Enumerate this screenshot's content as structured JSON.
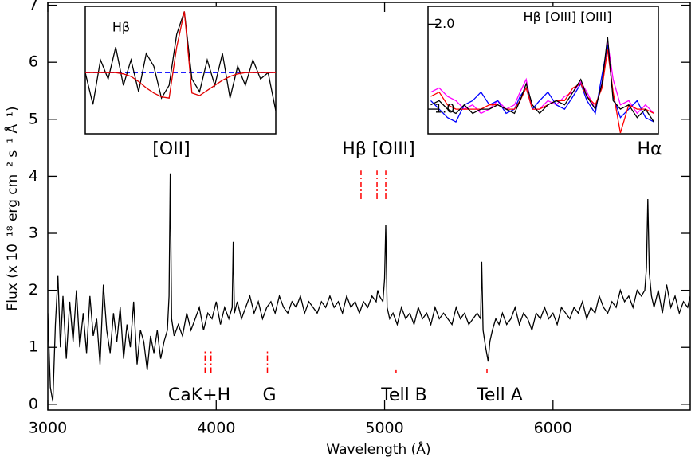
{
  "chart_data": [
    {
      "type": "line",
      "xlabel": "Wavelength (Å)",
      "ylabel": "Flux (x 10⁻¹⁸ erg cm⁻² s⁻¹ Å⁻¹)",
      "xlim": [
        3000,
        6815
      ],
      "ylim": [
        -0.1,
        7.05
      ],
      "xticks": [
        3000,
        4000,
        5000,
        6000
      ],
      "yticks": [
        0,
        1,
        2,
        3,
        4,
        5,
        6,
        7
      ],
      "color": "#000000",
      "x": [
        3000,
        3015,
        3030,
        3045,
        3060,
        3075,
        3090,
        3110,
        3130,
        3150,
        3170,
        3190,
        3210,
        3230,
        3250,
        3270,
        3290,
        3310,
        3330,
        3350,
        3370,
        3390,
        3410,
        3430,
        3450,
        3470,
        3490,
        3510,
        3530,
        3550,
        3570,
        3590,
        3610,
        3630,
        3650,
        3670,
        3690,
        3710,
        3720,
        3727,
        3735,
        3750,
        3775,
        3800,
        3825,
        3850,
        3875,
        3900,
        3925,
        3950,
        3975,
        4000,
        4025,
        4050,
        4075,
        4095,
        4101,
        4108,
        4125,
        4150,
        4175,
        4200,
        4225,
        4250,
        4275,
        4300,
        4325,
        4350,
        4375,
        4400,
        4425,
        4450,
        4475,
        4500,
        4525,
        4550,
        4575,
        4600,
        4625,
        4650,
        4675,
        4700,
        4725,
        4750,
        4775,
        4800,
        4825,
        4850,
        4875,
        4900,
        4925,
        4950,
        4959,
        4970,
        4990,
        5000,
        5007,
        5015,
        5030,
        5050,
        5075,
        5100,
        5125,
        5150,
        5175,
        5200,
        5225,
        5250,
        5275,
        5300,
        5325,
        5350,
        5375,
        5400,
        5425,
        5450,
        5475,
        5500,
        5525,
        5550,
        5570,
        5577,
        5585,
        5600,
        5615,
        5625,
        5640,
        5660,
        5680,
        5700,
        5725,
        5750,
        5775,
        5800,
        5825,
        5850,
        5875,
        5900,
        5925,
        5950,
        5975,
        6000,
        6025,
        6050,
        6075,
        6100,
        6125,
        6150,
        6175,
        6200,
        6225,
        6250,
        6275,
        6300,
        6325,
        6350,
        6375,
        6400,
        6425,
        6450,
        6475,
        6500,
        6525,
        6545,
        6555,
        6563,
        6572,
        6585,
        6600,
        6625,
        6650,
        6675,
        6700,
        6725,
        6750,
        6775,
        6800,
        6815
      ],
      "values": [
        1.6,
        0.3,
        0.05,
        1.4,
        2.25,
        1.0,
        1.9,
        0.8,
        1.8,
        1.1,
        2.0,
        1.0,
        1.6,
        0.9,
        1.9,
        1.2,
        1.5,
        0.7,
        2.1,
        1.3,
        0.9,
        1.6,
        1.1,
        1.7,
        0.8,
        1.4,
        1.0,
        1.8,
        0.7,
        1.3,
        1.1,
        0.6,
        1.2,
        0.9,
        1.3,
        0.8,
        1.1,
        1.3,
        1.9,
        4.05,
        1.5,
        1.2,
        1.4,
        1.2,
        1.6,
        1.3,
        1.5,
        1.7,
        1.3,
        1.6,
        1.5,
        1.8,
        1.4,
        1.7,
        1.5,
        1.7,
        2.85,
        1.6,
        1.8,
        1.5,
        1.7,
        1.9,
        1.6,
        1.8,
        1.5,
        1.7,
        1.8,
        1.6,
        1.9,
        1.7,
        1.6,
        1.8,
        1.7,
        1.9,
        1.6,
        1.8,
        1.7,
        1.6,
        1.8,
        1.7,
        1.9,
        1.7,
        1.8,
        1.6,
        1.9,
        1.7,
        1.8,
        1.6,
        1.8,
        1.7,
        1.9,
        1.8,
        2.0,
        1.9,
        1.8,
        2.2,
        3.15,
        1.7,
        1.5,
        1.6,
        1.4,
        1.7,
        1.5,
        1.6,
        1.4,
        1.7,
        1.5,
        1.6,
        1.4,
        1.7,
        1.5,
        1.6,
        1.5,
        1.4,
        1.7,
        1.5,
        1.6,
        1.4,
        1.5,
        1.6,
        1.5,
        2.5,
        1.3,
        1.0,
        0.75,
        1.1,
        1.3,
        1.5,
        1.4,
        1.6,
        1.4,
        1.5,
        1.7,
        1.4,
        1.6,
        1.5,
        1.3,
        1.6,
        1.5,
        1.7,
        1.5,
        1.6,
        1.4,
        1.7,
        1.6,
        1.5,
        1.7,
        1.6,
        1.8,
        1.5,
        1.7,
        1.6,
        1.9,
        1.7,
        1.6,
        1.8,
        1.7,
        2.0,
        1.8,
        1.9,
        1.7,
        2.0,
        1.9,
        2.0,
        2.4,
        3.6,
        2.3,
        1.9,
        1.7,
        2.0,
        1.6,
        2.1,
        1.7,
        1.9,
        1.6,
        1.8,
        1.7,
        1.9
      ],
      "annotations": [
        "[OII]",
        "Hβ [OIII]",
        "Hα",
        "CaK+H",
        "G",
        "Tell B",
        "Tell A"
      ],
      "marker_color": "#ff0000",
      "markers": [
        {
          "x": 4860,
          "y": [
            3.6,
            4.1
          ]
        },
        {
          "x": 4955,
          "y": [
            3.6,
            4.1
          ]
        },
        {
          "x": 5007,
          "y": [
            3.6,
            4.1
          ]
        },
        {
          "x": 3934,
          "y": [
            0.55,
            0.95
          ]
        },
        {
          "x": 3969,
          "y": [
            0.55,
            0.95
          ]
        },
        {
          "x": 4304,
          "y": [
            0.55,
            0.95
          ]
        },
        {
          "x": 5068,
          "y": [
            0.55,
            0.6
          ]
        },
        {
          "x": 5608,
          "y": [
            0.55,
            0.62
          ]
        }
      ]
    },
    {
      "type": "line",
      "xlim": [
        4760,
        4960
      ],
      "ylim": [
        0.52,
        1.52
      ],
      "x": [
        4760,
        4768,
        4776,
        4784,
        4792,
        4800,
        4808,
        4816,
        4824,
        4832,
        4840,
        4848,
        4856,
        4864,
        4872,
        4880,
        4888,
        4896,
        4904,
        4912,
        4920,
        4928,
        4936,
        4944,
        4952,
        4960
      ],
      "series": [
        {
          "color": "#000000",
          "values": [
            1.0,
            0.75,
            1.1,
            0.95,
            1.2,
            0.9,
            1.1,
            0.85,
            1.15,
            1.05,
            0.8,
            0.9,
            1.3,
            1.48,
            0.95,
            0.85,
            1.1,
            0.9,
            1.15,
            0.8,
            1.05,
            0.9,
            1.1,
            0.95,
            1.0,
            0.7
          ]
        },
        {
          "color": "#e00000",
          "values": [
            1.0,
            1.0,
            1.0,
            1.0,
            1.0,
            0.99,
            0.97,
            0.93,
            0.88,
            0.84,
            0.81,
            0.8,
            1.2,
            1.48,
            0.84,
            0.82,
            0.86,
            0.9,
            0.94,
            0.97,
            0.99,
            1.0,
            1.0,
            1.0,
            1.0,
            1.0
          ]
        }
      ],
      "continuum": 1.0,
      "continuum_color": "#0000ff",
      "annotations": [
        "Hβ"
      ]
    },
    {
      "type": "line",
      "xlim": [
        4685,
        5098
      ],
      "ylim": [
        0.71,
        2.21
      ],
      "yticks": [
        {
          "value": 1.0,
          "label": "1.0"
        },
        {
          "value": 2.0,
          "label": "2.0"
        }
      ],
      "x": [
        4690,
        4705,
        4720,
        4735,
        4750,
        4765,
        4780,
        4795,
        4810,
        4825,
        4840,
        4850,
        4861,
        4872,
        4885,
        4900,
        4915,
        4930,
        4945,
        4959,
        4970,
        4985,
        4997,
        5007,
        5017,
        5030,
        5045,
        5060,
        5075,
        5090
      ],
      "series": [
        {
          "color": "#ff00ff",
          "values": [
            1.2,
            1.25,
            1.15,
            1.1,
            1.0,
            1.05,
            0.95,
            1.0,
            1.1,
            1.0,
            1.05,
            1.2,
            1.35,
            1.0,
            1.0,
            1.1,
            1.05,
            1.15,
            1.2,
            1.32,
            1.2,
            1.0,
            1.3,
            1.8,
            1.35,
            1.05,
            1.1,
            0.95,
            1.05,
            0.95
          ]
        },
        {
          "color": "#0000ff",
          "values": [
            1.1,
            1.0,
            0.9,
            0.85,
            1.05,
            1.1,
            1.2,
            1.05,
            1.1,
            0.95,
            1.0,
            1.15,
            1.25,
            1.0,
            1.1,
            1.2,
            1.05,
            1.0,
            1.15,
            1.3,
            1.1,
            0.95,
            1.4,
            1.75,
            1.15,
            0.9,
            1.0,
            1.1,
            0.9,
            0.85
          ]
        },
        {
          "color": "#ff0000",
          "values": [
            1.15,
            1.2,
            1.05,
            1.0,
            1.0,
            1.0,
            1.0,
            1.05,
            1.05,
            1.0,
            1.0,
            1.1,
            1.25,
            1.0,
            1.0,
            1.05,
            1.1,
            1.1,
            1.25,
            1.3,
            1.15,
            1.05,
            1.25,
            1.7,
            1.2,
            0.72,
            1.05,
            1.0,
            1.0,
            0.95
          ]
        },
        {
          "color": "#000000",
          "values": [
            1.05,
            1.1,
            1.0,
            0.95,
            1.05,
            0.95,
            1.0,
            1.0,
            1.05,
            1.0,
            0.95,
            1.1,
            1.3,
            1.05,
            0.95,
            1.05,
            1.1,
            1.05,
            1.2,
            1.35,
            1.15,
            1.0,
            1.3,
            1.85,
            1.1,
            1.0,
            1.05,
            0.9,
            1.0,
            0.85
          ]
        }
      ],
      "annotations": [
        "Hβ [OIII] [OIII]"
      ]
    }
  ]
}
